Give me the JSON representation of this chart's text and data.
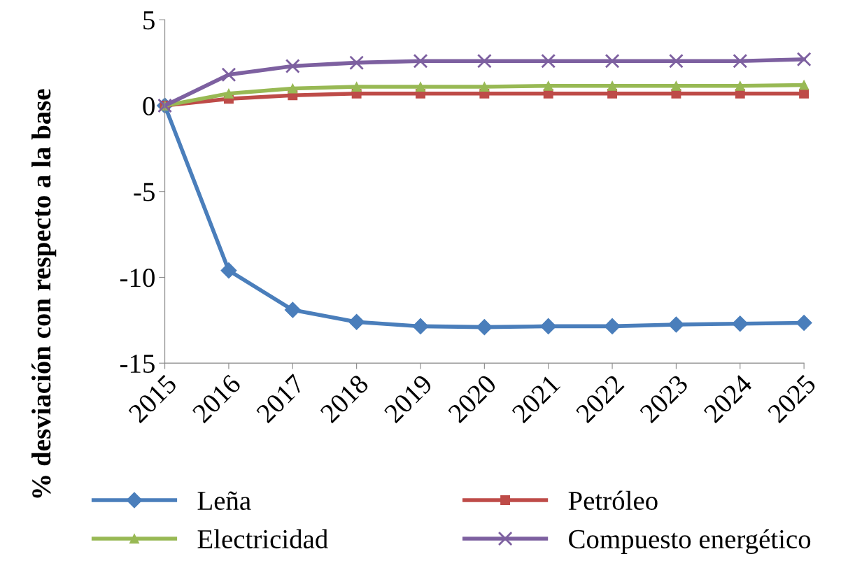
{
  "chart_data": {
    "type": "line",
    "ylabel": "% desviación con respecto a la base",
    "categories": [
      "2015",
      "2016",
      "2017",
      "2018",
      "2019",
      "2020",
      "2021",
      "2022",
      "2023",
      "2024",
      "2025"
    ],
    "series": [
      {
        "name": "Leña",
        "color": "#4a7ebb",
        "marker": "diamond",
        "values": [
          0,
          -9.6,
          -11.9,
          -12.6,
          -12.85,
          -12.9,
          -12.85,
          -12.85,
          -12.75,
          -12.7,
          -12.65
        ]
      },
      {
        "name": "Petróleo",
        "color": "#be4b48",
        "marker": "square",
        "values": [
          0,
          0.4,
          0.6,
          0.7,
          0.7,
          0.7,
          0.7,
          0.7,
          0.7,
          0.7,
          0.7
        ]
      },
      {
        "name": "Electricidad",
        "color": "#98b954",
        "marker": "triangle",
        "values": [
          0,
          0.7,
          1.0,
          1.1,
          1.1,
          1.1,
          1.15,
          1.15,
          1.15,
          1.15,
          1.2
        ]
      },
      {
        "name": "Compuesto energético",
        "color": "#7d60a0",
        "marker": "cross",
        "values": [
          0,
          1.8,
          2.3,
          2.5,
          2.6,
          2.6,
          2.6,
          2.6,
          2.6,
          2.6,
          2.7
        ]
      }
    ],
    "ylim": [
      -15,
      5
    ],
    "yticks": [
      5,
      0,
      -5,
      -10,
      -15
    ],
    "grid": false,
    "legend": "bottom"
  }
}
